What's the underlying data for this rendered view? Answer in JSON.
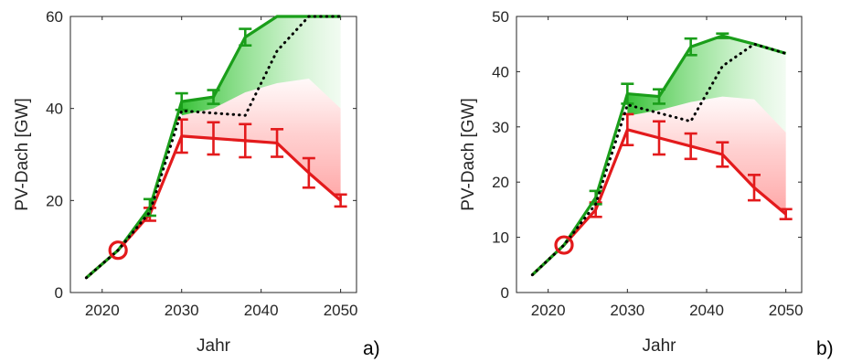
{
  "chart_data": [
    {
      "type": "line",
      "panel_label": "a)",
      "xlabel": "Jahr",
      "ylabel": "PV-Dach  [GW]",
      "xlim": [
        2016,
        2052
      ],
      "ylim": [
        0,
        60
      ],
      "xticks": [
        2020,
        2030,
        2040,
        2050
      ],
      "yticks": [
        0,
        20,
        40,
        60
      ],
      "grid": false,
      "series": [
        {
          "color": "#e31a1c",
          "style": "solid",
          "x": [
            2018,
            2022,
            2026,
            2030,
            2034,
            2038,
            2042,
            2046,
            2050
          ],
          "y": [
            3.2,
            9.2,
            17.0,
            34.0,
            33.5,
            33.0,
            32.5,
            26.0,
            20.0
          ],
          "err": [
            0,
            0,
            1.4,
            3.6,
            3.5,
            3.6,
            3.0,
            3.2,
            1.3
          ]
        },
        {
          "color": "#1a9e1a",
          "style": "solid",
          "x": [
            2018,
            2022,
            2026,
            2030,
            2034,
            2038,
            2042,
            2046,
            2050
          ],
          "y": [
            3.2,
            9.2,
            18.5,
            41.5,
            42.5,
            55.5,
            60.0,
            60.0,
            60.0
          ],
          "err": [
            0,
            0,
            1.8,
            1.8,
            1.5,
            1.8,
            0,
            0,
            0
          ]
        },
        {
          "color": "#000000",
          "style": "dotted",
          "x": [
            2018,
            2022,
            2026,
            2030,
            2038,
            2042,
            2046,
            2050
          ],
          "y": [
            3.2,
            9.2,
            17.5,
            39.5,
            38.5,
            52.5,
            60.0,
            60.0
          ]
        }
      ],
      "band_green_upper": [
        41.5,
        42.5,
        55.5,
        60.0,
        60.0,
        60.0
      ],
      "band_red_upper": [
        38.5,
        40.0,
        43.5,
        45.5,
        46.5,
        40.0
      ],
      "band_x": [
        2030,
        2034,
        2038,
        2042,
        2046,
        2050
      ],
      "marker": {
        "x": 2022,
        "y": 9.2,
        "color": "#e31a1c"
      }
    },
    {
      "type": "line",
      "panel_label": "b)",
      "xlabel": "Jahr",
      "ylabel": "PV-Dach  [GW]",
      "xlim": [
        2016,
        2052
      ],
      "ylim": [
        0,
        50
      ],
      "xticks": [
        2020,
        2030,
        2040,
        2050
      ],
      "yticks": [
        0,
        10,
        20,
        30,
        40,
        50
      ],
      "grid": false,
      "series": [
        {
          "color": "#e31a1c",
          "style": "solid",
          "x": [
            2018,
            2022,
            2026,
            2030,
            2034,
            2038,
            2042,
            2046,
            2050
          ],
          "y": [
            3.2,
            8.6,
            15.0,
            29.5,
            28.0,
            26.5,
            25.0,
            19.0,
            14.2
          ],
          "err": [
            0,
            0,
            1.3,
            2.8,
            3.0,
            2.3,
            2.2,
            2.3,
            0.9
          ]
        },
        {
          "color": "#1a9e1a",
          "style": "solid",
          "x": [
            2018,
            2022,
            2026,
            2030,
            2034,
            2038,
            2042,
            2046,
            2050
          ],
          "y": [
            3.2,
            8.6,
            17.2,
            36.0,
            35.5,
            44.5,
            46.5,
            45.0,
            43.3
          ],
          "err": [
            0,
            0,
            1.2,
            1.8,
            1.3,
            1.5,
            0.4,
            0,
            0
          ]
        },
        {
          "color": "#000000",
          "style": "dotted",
          "x": [
            2018,
            2022,
            2026,
            2030,
            2038,
            2042,
            2046,
            2050
          ],
          "y": [
            3.2,
            8.6,
            16.0,
            34.0,
            31.0,
            41.0,
            45.0,
            43.3
          ]
        }
      ],
      "band_green_upper": [
        36.0,
        35.5,
        44.5,
        46.5,
        45.0,
        43.3
      ],
      "band_red_upper": [
        32.0,
        33.0,
        34.5,
        35.5,
        35.0,
        29.0
      ],
      "band_x": [
        2030,
        2034,
        2038,
        2042,
        2046,
        2050
      ],
      "marker": {
        "x": 2022,
        "y": 8.6,
        "color": "#e31a1c"
      }
    }
  ]
}
